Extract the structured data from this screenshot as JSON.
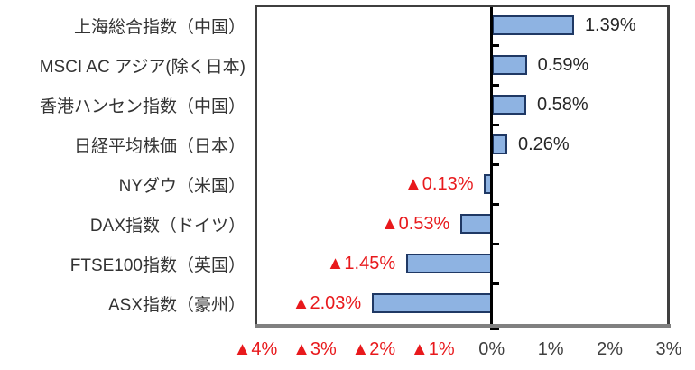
{
  "chart_data": {
    "type": "bar",
    "orientation": "horizontal",
    "title": "",
    "xlabel": "",
    "ylabel": "",
    "grid": false,
    "legend": false,
    "categories": [
      "上海総合指数（中国）",
      "MSCI AC アジア(除く日本)",
      "香港ハンセン指数（中国）",
      "日経平均株価（日本）",
      "NYダウ（米国）",
      "DAX指数（ドイツ）",
      "FTSE100指数（英国）",
      "ASX指数（豪州）"
    ],
    "values": [
      1.39,
      0.59,
      0.58,
      0.26,
      -0.13,
      -0.53,
      -1.45,
      -2.03
    ],
    "value_labels": [
      "1.39%",
      "0.59%",
      "0.58%",
      "0.26%",
      "▲0.13%",
      "▲0.53%",
      "▲1.45%",
      "▲2.03%"
    ],
    "x_axis": {
      "range": [
        -4,
        3
      ],
      "ticks": [
        -4,
        -3,
        -2,
        -1,
        0,
        1,
        2,
        3
      ],
      "tick_labels": [
        "▲4%",
        "▲3%",
        "▲2%",
        "▲1%",
        "0%",
        "1%",
        "2%",
        "3%"
      ]
    }
  },
  "colors": {
    "bar_fill": "#8eb3e2",
    "bar_border": "#1f3864",
    "positive_text": "#262626",
    "negative_text": "#e8191c",
    "category_text": "#333333",
    "axis_label_text": "#3f3f3f",
    "plot_border": "#3f3f3f",
    "baseline": "#808080",
    "zero_axis": "#000000"
  }
}
